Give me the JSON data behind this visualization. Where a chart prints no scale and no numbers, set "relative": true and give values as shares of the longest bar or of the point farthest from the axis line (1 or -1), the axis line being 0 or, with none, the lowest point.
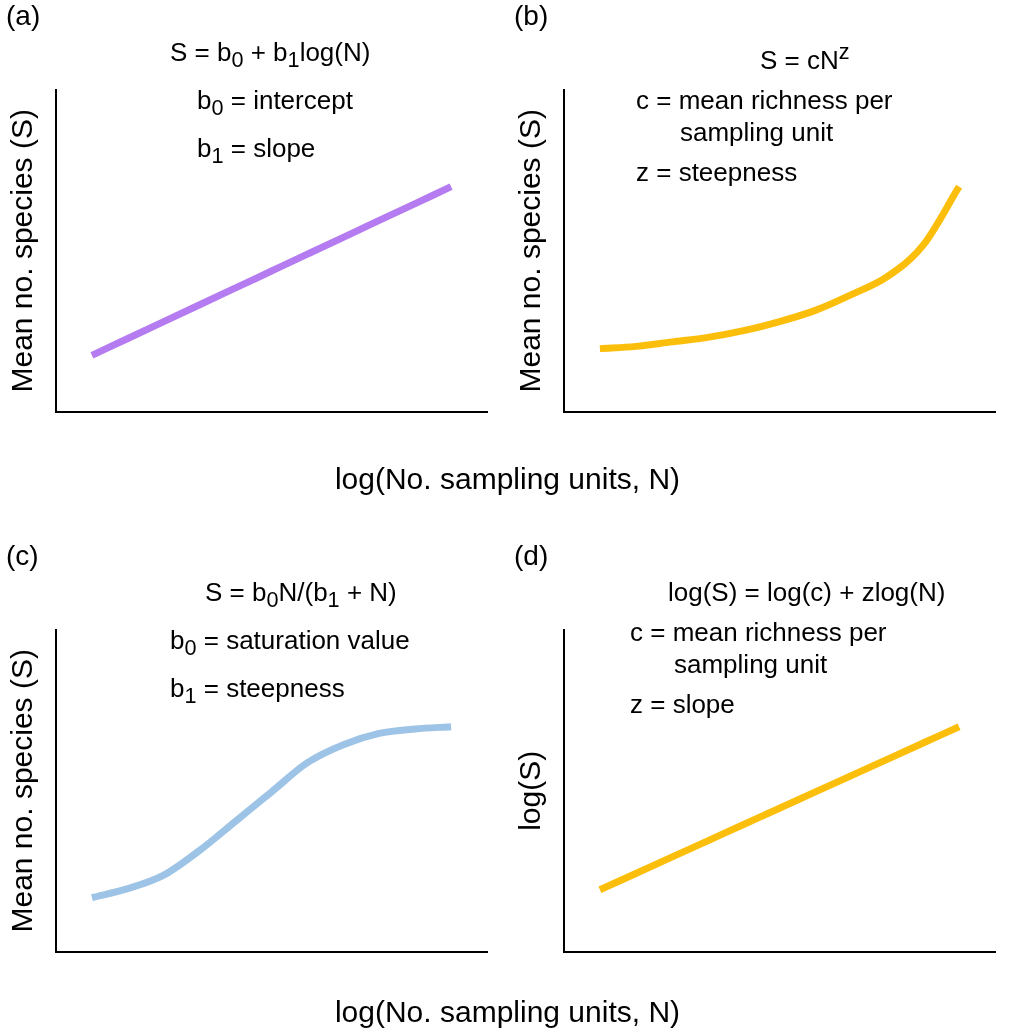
{
  "chart_data": [
    {
      "type": "line",
      "title": "(a)",
      "ylabel": "Mean no. species (S)",
      "xlabel": "log(No. sampling units, N)",
      "annotations": [
        "S = b$_{0}$ + b$_{1}$log(N)",
        "b$_{0}$ = intercept",
        "b$_{1}$ = slope"
      ],
      "relative": true,
      "grid": false,
      "legend": false,
      "marker": "none",
      "categories": [
        null,
        null,
        null,
        null,
        null,
        null,
        null,
        null,
        null,
        null,
        null,
        null,
        null
      ],
      "series": [
        {
          "color": "#b57bf0",
          "values": [
            null,
            0.25,
            0.325,
            0.4,
            0.475,
            0.55,
            0.625,
            0.7,
            0.775,
            0.85,
            0.925,
            1,
            null
          ]
        }
      ]
    },
    {
      "type": "line",
      "title": "(b)",
      "ylabel": "Mean no. species (S)",
      "annotations": [
        "S = cN$^{z}$",
        "c = mean richness per sampling unit",
        "z = steepness"
      ],
      "relative": true,
      "grid": false,
      "legend": false,
      "marker": "none",
      "categories": [
        null,
        null,
        null,
        null,
        null,
        null,
        null,
        null,
        null,
        null,
        null,
        null,
        null
      ],
      "series": [
        {
          "color": "#fbbf0b",
          "values": [
            null,
            0.28,
            0.29,
            0.31,
            0.33,
            0.36,
            0.4,
            0.45,
            0.52,
            0.6,
            0.74,
            1,
            null
          ]
        }
      ]
    },
    {
      "type": "line",
      "title": "(c)",
      "ylabel": "Mean no. species (S)",
      "xlabel": "log(No. sampling units, N)",
      "annotations": [
        "S = b$_{0}$N/(b$_{1}$ + N)",
        "b$_{0}$ = saturation value",
        "b$_{1}$ = steepness"
      ],
      "relative": true,
      "grid": false,
      "legend": false,
      "marker": "none",
      "categories": [
        null,
        null,
        null,
        null,
        null,
        null,
        null,
        null,
        null,
        null,
        null,
        null,
        null
      ],
      "series": [
        {
          "color": "#9dc3e6",
          "values": [
            null,
            0.24,
            0.28,
            0.34,
            0.45,
            0.58,
            0.71,
            0.84,
            0.92,
            0.97,
            0.99,
            1,
            null
          ]
        }
      ]
    },
    {
      "type": "line",
      "title": "(d)",
      "ylabel": "log(S)",
      "annotations": [
        "log(S) = log(c) + zlog(N)",
        "c = mean richness per sampling unit",
        "z = slope"
      ],
      "relative": true,
      "grid": false,
      "legend": false,
      "marker": "none",
      "categories": [
        null,
        null,
        null,
        null,
        null,
        null,
        null,
        null,
        null,
        null,
        null,
        null,
        null
      ],
      "series": [
        {
          "color": "#fbbf0b",
          "values": [
            null,
            0.275,
            0.3475,
            0.42,
            0.4925,
            0.565,
            0.6375,
            0.71,
            0.7825,
            0.855,
            0.9275,
            1,
            null
          ]
        }
      ]
    }
  ]
}
